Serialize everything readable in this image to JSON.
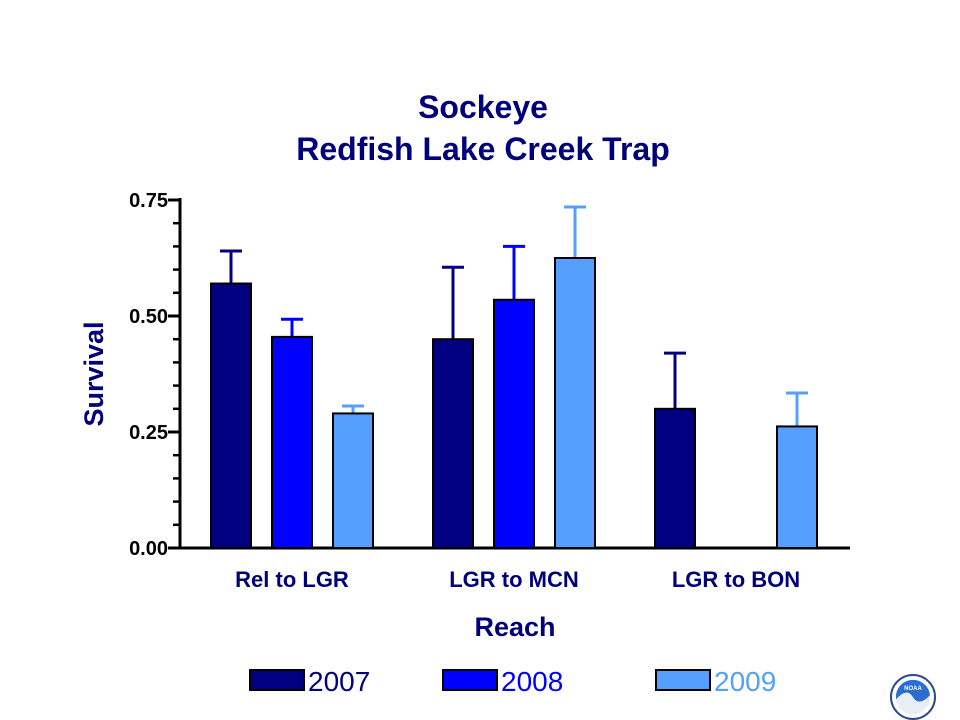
{
  "chart_data": {
    "type": "bar",
    "title_lines": [
      "Sockeye",
      "Redfish Lake Creek Trap"
    ],
    "xlabel": "Reach",
    "ylabel": "Survival",
    "categories": [
      "Rel to LGR",
      "LGR to MCN",
      "LGR to BON"
    ],
    "ylim": [
      0,
      0.75
    ],
    "yticks": [
      "0.00",
      "0.25",
      "0.50",
      "0.75"
    ],
    "series": [
      {
        "name": "2007",
        "color": "#000080",
        "values": [
          0.57,
          0.45,
          0.3
        ],
        "error_upper": [
          0.64,
          0.605,
          0.42
        ]
      },
      {
        "name": "2008",
        "color": "#0000ff",
        "values": [
          0.455,
          0.535,
          null
        ],
        "error_upper": [
          0.493,
          0.65,
          null
        ]
      },
      {
        "name": "2009",
        "color": "#55a0ff",
        "values": [
          0.29,
          0.625,
          0.262
        ],
        "error_upper": [
          0.306,
          0.735,
          0.334
        ]
      }
    ],
    "legend_position": "bottom",
    "grid": false
  },
  "logo": {
    "name": "NOAA",
    "text": "NOAA"
  }
}
